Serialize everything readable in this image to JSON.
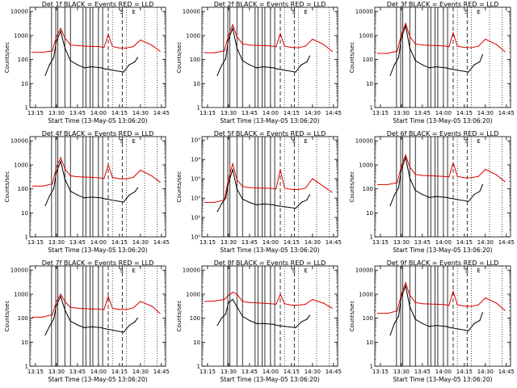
{
  "figure": {
    "x_tick_labels": [
      "13:15",
      "13:30",
      "13:45",
      "14:00",
      "14:15",
      "14:30",
      "14:45"
    ],
    "x_label": "Start Time (13-May-05 13:06:20)",
    "y_label": "Counts/sec",
    "annotations": [
      "S",
      "E"
    ]
  },
  "chart_data": [
    {
      "type": "line",
      "title": "Det 1f BLACK = Events RED = LLD",
      "y_ticks": [
        "1",
        "10",
        "100",
        "1000",
        "10000"
      ],
      "ylim": [
        1,
        15000
      ],
      "xlim": [
        "13:11",
        "14:48"
      ],
      "log_y": true,
      "colors": {
        "events": "#000000",
        "lld": "#dd0000"
      },
      "series": [
        {
          "name": "BLACK = Events",
          "x": [
            "13:22",
            "13:25",
            "13:28",
            "13:30",
            "13:33",
            "13:36",
            "13:40",
            "13:45",
            "13:50",
            "13:55",
            "14:02",
            "14:05",
            "14:18",
            "14:22",
            "14:26",
            "14:28"
          ],
          "values": [
            22,
            60,
            120,
            600,
            1500,
            300,
            90,
            60,
            45,
            50,
            45,
            40,
            30,
            60,
            80,
            120
          ]
        },
        {
          "name": "RED = LLD",
          "x": [
            "13:13",
            "13:20",
            "13:27",
            "13:30",
            "13:33",
            "13:36",
            "13:40",
            "13:45",
            "13:55",
            "14:00",
            "14:04",
            "14:07",
            "14:10",
            "14:15",
            "14:20",
            "14:25",
            "14:30",
            "14:38",
            "14:44"
          ],
          "values": [
            200,
            200,
            230,
            900,
            2000,
            800,
            400,
            380,
            350,
            350,
            320,
            1100,
            350,
            300,
            300,
            350,
            650,
            400,
            220
          ]
        }
      ]
    },
    {
      "type": "line",
      "title": "Det 2f BLACK = Events RED = LLD",
      "y_ticks": [
        "1",
        "10",
        "100",
        "1000",
        "10000"
      ],
      "ylim": [
        1,
        15000
      ],
      "xlim": [
        "13:11",
        "14:48"
      ],
      "log_y": true,
      "colors": {
        "events": "#000000",
        "lld": "#dd0000"
      },
      "series": [
        {
          "name": "BLACK = Events",
          "x": [
            "13:22",
            "13:25",
            "13:28",
            "13:30",
            "13:33",
            "13:36",
            "13:40",
            "13:45",
            "13:50",
            "13:55",
            "14:02",
            "14:05",
            "14:18",
            "14:22",
            "14:26",
            "14:28"
          ],
          "values": [
            22,
            55,
            110,
            700,
            2000,
            300,
            90,
            60,
            45,
            50,
            45,
            40,
            30,
            60,
            80,
            140
          ]
        },
        {
          "name": "RED = LLD",
          "x": [
            "13:13",
            "13:20",
            "13:27",
            "13:30",
            "13:33",
            "13:36",
            "13:40",
            "13:45",
            "13:55",
            "14:00",
            "14:04",
            "14:07",
            "14:10",
            "14:15",
            "14:20",
            "14:25",
            "14:30",
            "14:38",
            "14:44"
          ],
          "values": [
            190,
            190,
            230,
            1000,
            2800,
            900,
            450,
            400,
            380,
            370,
            340,
            1200,
            360,
            320,
            310,
            360,
            700,
            420,
            220
          ]
        }
      ]
    },
    {
      "type": "line",
      "title": "Det 3f BLACK = Events RED = LLD",
      "y_ticks": [
        "1",
        "10",
        "100",
        "1000",
        "10000"
      ],
      "ylim": [
        1,
        15000
      ],
      "xlim": [
        "13:11",
        "14:48"
      ],
      "log_y": true,
      "colors": {
        "events": "#000000",
        "lld": "#dd0000"
      },
      "series": [
        {
          "name": "BLACK = Events",
          "x": [
            "13:22",
            "13:25",
            "13:28",
            "13:30",
            "13:33",
            "13:36",
            "13:40",
            "13:45",
            "13:50",
            "13:55",
            "14:02",
            "14:05",
            "14:18",
            "14:22",
            "14:26",
            "14:28"
          ],
          "values": [
            22,
            60,
            120,
            800,
            2500,
            300,
            90,
            60,
            45,
            50,
            45,
            40,
            30,
            60,
            80,
            160
          ]
        },
        {
          "name": "RED = LLD",
          "x": [
            "13:13",
            "13:20",
            "13:27",
            "13:30",
            "13:33",
            "13:36",
            "13:40",
            "13:45",
            "13:55",
            "14:00",
            "14:04",
            "14:07",
            "14:10",
            "14:15",
            "14:20",
            "14:25",
            "14:30",
            "14:38",
            "14:44"
          ],
          "values": [
            180,
            180,
            220,
            1100,
            3200,
            900,
            450,
            400,
            380,
            370,
            340,
            1300,
            360,
            320,
            310,
            360,
            700,
            420,
            210
          ]
        }
      ]
    },
    {
      "type": "line",
      "title": "Det 4f BLACK = Events RED = LLD",
      "y_ticks": [
        "1",
        "10",
        "100",
        "1000",
        "10000"
      ],
      "ylim": [
        1,
        15000
      ],
      "xlim": [
        "13:11",
        "14:48"
      ],
      "log_y": true,
      "colors": {
        "events": "#000000",
        "lld": "#dd0000"
      },
      "series": [
        {
          "name": "BLACK = Events",
          "x": [
            "13:22",
            "13:25",
            "13:28",
            "13:30",
            "13:33",
            "13:36",
            "13:40",
            "13:45",
            "13:50",
            "13:55",
            "14:02",
            "14:05",
            "14:18",
            "14:22",
            "14:26",
            "14:28"
          ],
          "values": [
            20,
            50,
            100,
            500,
            1400,
            260,
            80,
            55,
            42,
            45,
            42,
            38,
            28,
            55,
            75,
            110
          ]
        },
        {
          "name": "RED = LLD",
          "x": [
            "13:13",
            "13:20",
            "13:27",
            "13:30",
            "13:33",
            "13:36",
            "13:40",
            "13:45",
            "13:55",
            "14:00",
            "14:04",
            "14:07",
            "14:10",
            "14:15",
            "14:20",
            "14:25",
            "14:30",
            "14:38",
            "14:44"
          ],
          "values": [
            130,
            130,
            160,
            800,
            2000,
            700,
            350,
            320,
            300,
            290,
            270,
            1000,
            300,
            260,
            260,
            300,
            600,
            350,
            190
          ]
        }
      ]
    },
    {
      "type": "line",
      "title": "Det 5f BLACK = Events RED = LLD",
      "y_ticks": [
        "10⁰",
        "10¹",
        "10²",
        "10³",
        "10⁴",
        "10⁵"
      ],
      "ylim": [
        1,
        150000
      ],
      "xlim": [
        "13:11",
        "14:48"
      ],
      "log_y": true,
      "colors": {
        "events": "#000000",
        "lld": "#dd0000"
      },
      "series": [
        {
          "name": "BLACK = Events",
          "x": [
            "13:22",
            "13:25",
            "13:28",
            "13:30",
            "13:33",
            "13:36",
            "13:40",
            "13:45",
            "13:50",
            "13:55",
            "14:02",
            "14:05",
            "14:18",
            "14:22",
            "14:26",
            "14:28"
          ],
          "values": [
            20,
            50,
            100,
            600,
            3000,
            300,
            90,
            60,
            45,
            50,
            45,
            40,
            30,
            60,
            80,
            150
          ]
        },
        {
          "name": "RED = LLD",
          "x": [
            "13:13",
            "13:20",
            "13:27",
            "13:30",
            "13:33",
            "13:36",
            "13:40",
            "13:45",
            "13:55",
            "14:00",
            "14:04",
            "14:07",
            "14:10",
            "14:15",
            "14:20",
            "14:25",
            "14:30",
            "14:38",
            "14:44"
          ],
          "values": [
            60,
            60,
            80,
            1000,
            6000,
            900,
            400,
            350,
            330,
            320,
            300,
            3000,
            330,
            280,
            280,
            330,
            1000,
            400,
            200
          ]
        }
      ]
    },
    {
      "type": "line",
      "title": "Det 6f BLACK = Events RED = LLD",
      "y_ticks": [
        "1",
        "10",
        "100",
        "1000",
        "10000"
      ],
      "ylim": [
        1,
        15000
      ],
      "xlim": [
        "13:11",
        "14:48"
      ],
      "log_y": true,
      "colors": {
        "events": "#000000",
        "lld": "#dd0000"
      },
      "series": [
        {
          "name": "BLACK = Events",
          "x": [
            "13:22",
            "13:25",
            "13:28",
            "13:30",
            "13:33",
            "13:36",
            "13:40",
            "13:45",
            "13:50",
            "13:55",
            "14:02",
            "14:05",
            "14:18",
            "14:22",
            "14:26",
            "14:28"
          ],
          "values": [
            20,
            55,
            110,
            650,
            2000,
            280,
            85,
            58,
            44,
            48,
            44,
            40,
            30,
            58,
            78,
            150
          ]
        },
        {
          "name": "RED = LLD",
          "x": [
            "13:13",
            "13:20",
            "13:27",
            "13:30",
            "13:33",
            "13:36",
            "13:40",
            "13:45",
            "13:55",
            "14:00",
            "14:04",
            "14:07",
            "14:10",
            "14:15",
            "14:20",
            "14:25",
            "14:30",
            "14:38",
            "14:44"
          ],
          "values": [
            150,
            150,
            180,
            900,
            2600,
            800,
            400,
            360,
            340,
            330,
            310,
            1200,
            330,
            290,
            290,
            330,
            650,
            380,
            200
          ]
        }
      ]
    },
    {
      "type": "line",
      "title": "Det 7f BLACK = Events RED = LLD",
      "y_ticks": [
        "1",
        "10",
        "100",
        "1000",
        "10000"
      ],
      "ylim": [
        1,
        15000
      ],
      "xlim": [
        "13:11",
        "14:48"
      ],
      "log_y": true,
      "colors": {
        "events": "#000000",
        "lld": "#dd0000"
      },
      "series": [
        {
          "name": "BLACK = Events",
          "x": [
            "13:22",
            "13:25",
            "13:28",
            "13:30",
            "13:33",
            "13:36",
            "13:40",
            "13:45",
            "13:50",
            "13:55",
            "14:02",
            "14:05",
            "14:18",
            "14:22",
            "14:26",
            "14:28"
          ],
          "values": [
            20,
            45,
            90,
            350,
            800,
            220,
            75,
            52,
            40,
            44,
            40,
            36,
            26,
            50,
            70,
            100
          ]
        },
        {
          "name": "RED = LLD",
          "x": [
            "13:13",
            "13:20",
            "13:27",
            "13:30",
            "13:33",
            "13:36",
            "13:40",
            "13:45",
            "13:55",
            "14:00",
            "14:04",
            "14:07",
            "14:10",
            "14:15",
            "14:20",
            "14:25",
            "14:30",
            "14:38",
            "14:44"
          ],
          "values": [
            110,
            110,
            140,
            500,
            1000,
            500,
            280,
            260,
            240,
            240,
            230,
            800,
            260,
            230,
            230,
            270,
            500,
            320,
            160
          ]
        }
      ]
    },
    {
      "type": "line",
      "title": "Det 8f BLACK = Events RED = LLD",
      "y_ticks": [
        "1",
        "10",
        "100",
        "1000",
        "10000"
      ],
      "ylim": [
        1,
        15000
      ],
      "xlim": [
        "13:11",
        "14:48"
      ],
      "log_y": true,
      "colors": {
        "events": "#000000",
        "lld": "#dd0000"
      },
      "series": [
        {
          "name": "BLACK = Events",
          "x": [
            "13:22",
            "13:25",
            "13:28",
            "13:30",
            "13:33",
            "13:36",
            "13:40",
            "13:45",
            "13:50",
            "13:55",
            "14:02",
            "14:05",
            "14:18",
            "14:22",
            "14:26",
            "14:28"
          ],
          "values": [
            50,
            100,
            150,
            450,
            600,
            300,
            120,
            80,
            60,
            60,
            55,
            50,
            40,
            70,
            90,
            130
          ]
        },
        {
          "name": "RED = LLD",
          "x": [
            "13:13",
            "13:20",
            "13:27",
            "13:30",
            "13:33",
            "13:36",
            "13:40",
            "13:45",
            "13:55",
            "14:00",
            "14:04",
            "14:07",
            "14:10",
            "14:15",
            "14:20",
            "14:25",
            "14:30",
            "14:38",
            "14:44"
          ],
          "values": [
            500,
            520,
            600,
            900,
            1200,
            1000,
            500,
            450,
            420,
            400,
            380,
            1000,
            400,
            350,
            350,
            380,
            600,
            420,
            260
          ]
        }
      ]
    },
    {
      "type": "line",
      "title": "Det 9f BLACK = Events RED = LLD",
      "y_ticks": [
        "1",
        "10",
        "100",
        "1000",
        "10000"
      ],
      "ylim": [
        1,
        15000
      ],
      "xlim": [
        "13:11",
        "14:48"
      ],
      "log_y": true,
      "colors": {
        "events": "#000000",
        "lld": "#dd0000"
      },
      "series": [
        {
          "name": "BLACK = Events",
          "x": [
            "13:22",
            "13:25",
            "13:28",
            "13:30",
            "13:33",
            "13:36",
            "13:40",
            "13:45",
            "13:50",
            "13:55",
            "14:02",
            "14:05",
            "14:18",
            "14:22",
            "14:26",
            "14:28"
          ],
          "values": [
            20,
            60,
            120,
            800,
            2200,
            300,
            90,
            60,
            45,
            50,
            45,
            40,
            30,
            60,
            80,
            170
          ]
        },
        {
          "name": "RED = LLD",
          "x": [
            "13:13",
            "13:20",
            "13:27",
            "13:30",
            "13:33",
            "13:36",
            "13:40",
            "13:45",
            "13:55",
            "14:00",
            "14:04",
            "14:07",
            "14:10",
            "14:15",
            "14:20",
            "14:25",
            "14:30",
            "14:38",
            "14:44"
          ],
          "values": [
            160,
            160,
            200,
            1000,
            3000,
            900,
            450,
            400,
            380,
            370,
            340,
            1300,
            360,
            320,
            310,
            360,
            700,
            420,
            210
          ]
        }
      ]
    }
  ]
}
